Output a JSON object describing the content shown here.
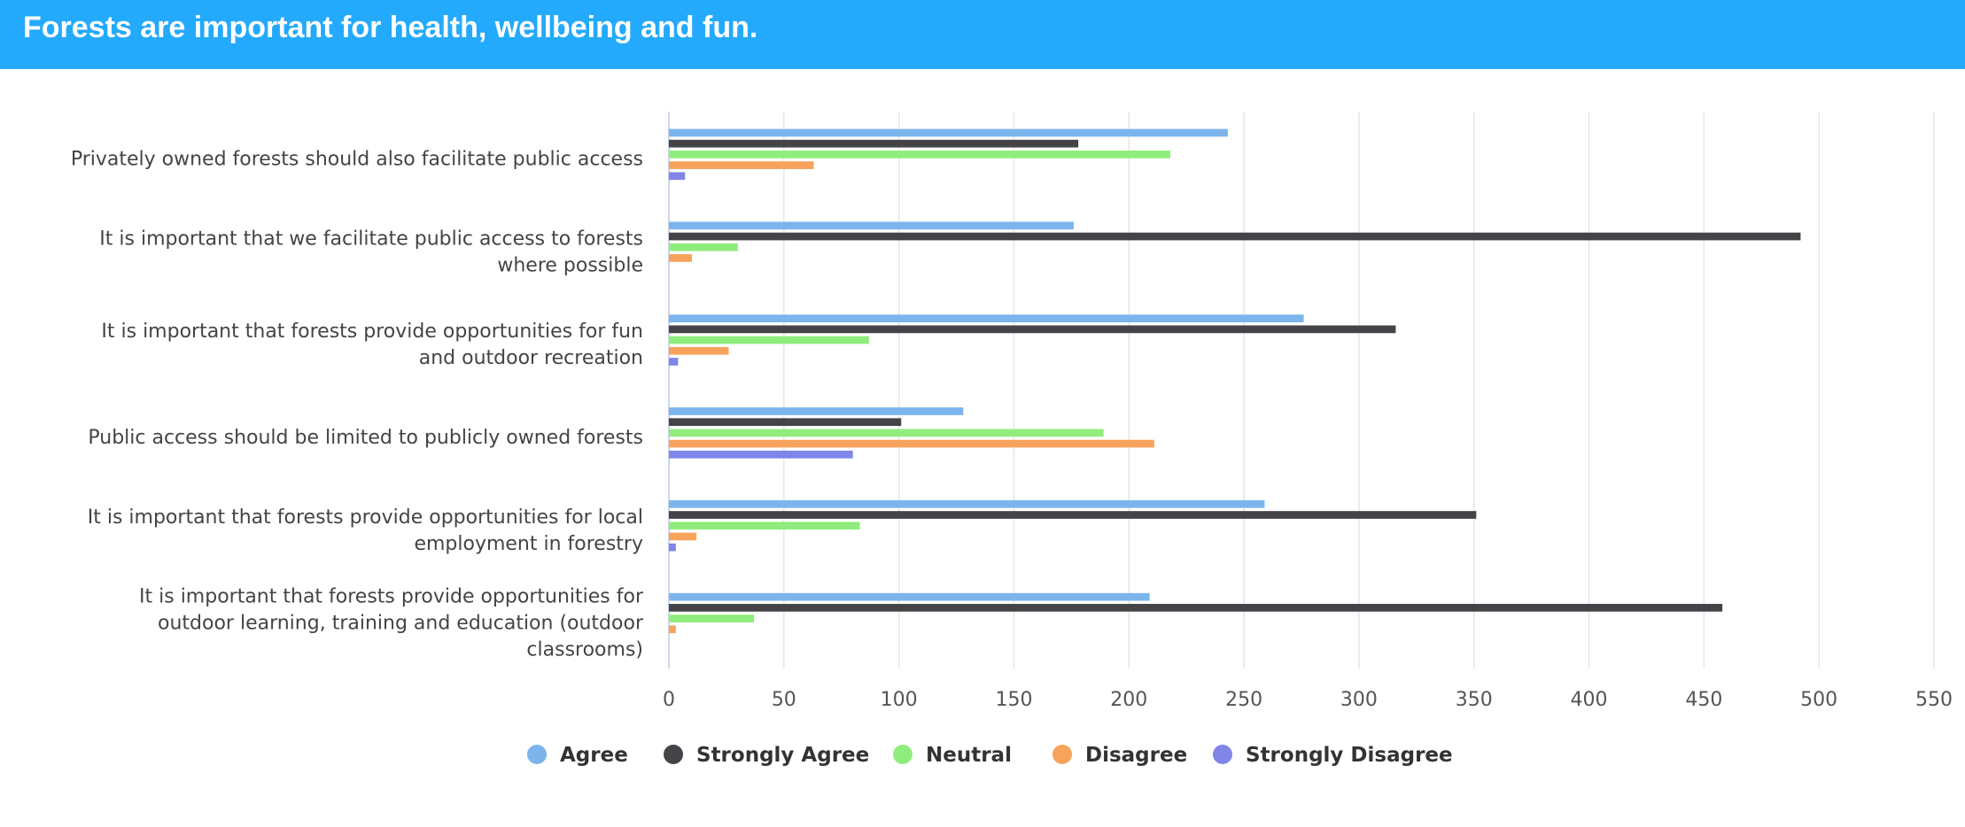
{
  "header": {
    "title": "Forests are important for health, wellbeing and fun."
  },
  "chart_data": {
    "type": "bar",
    "orientation": "horizontal",
    "categories": [
      [
        "Privately owned forests should also facilitate public access"
      ],
      [
        "It is important that we facilitate public access to forests",
        "where possible"
      ],
      [
        "It is important that forests provide opportunities for fun",
        "and outdoor recreation"
      ],
      [
        "Public access should be limited to publicly owned forests"
      ],
      [
        "It is important that forests provide opportunities for local",
        "employment in forestry"
      ],
      [
        "It is important that forests provide opportunities for",
        "outdoor learning, training and education (outdoor",
        "classrooms)"
      ]
    ],
    "series": [
      {
        "name": "Agree",
        "color": "#7cb5ec",
        "values": [
          243,
          176,
          276,
          128,
          259,
          209
        ]
      },
      {
        "name": "Strongly Agree",
        "color": "#434348",
        "values": [
          178,
          492,
          316,
          101,
          351,
          458
        ]
      },
      {
        "name": "Neutral",
        "color": "#90ed7d",
        "values": [
          218,
          30,
          87,
          189,
          83,
          37
        ]
      },
      {
        "name": "Disagree",
        "color": "#f7a35c",
        "values": [
          63,
          10,
          26,
          211,
          12,
          3
        ]
      },
      {
        "name": "Strongly Disagree",
        "color": "#8085e9",
        "values": [
          7,
          0,
          4,
          80,
          3,
          0
        ]
      }
    ],
    "xlim": [
      0,
      550
    ],
    "ticks": [
      0,
      50,
      100,
      150,
      200,
      250,
      300,
      350,
      400,
      450,
      500,
      550
    ],
    "grid": true,
    "legend": "bottom-center"
  }
}
